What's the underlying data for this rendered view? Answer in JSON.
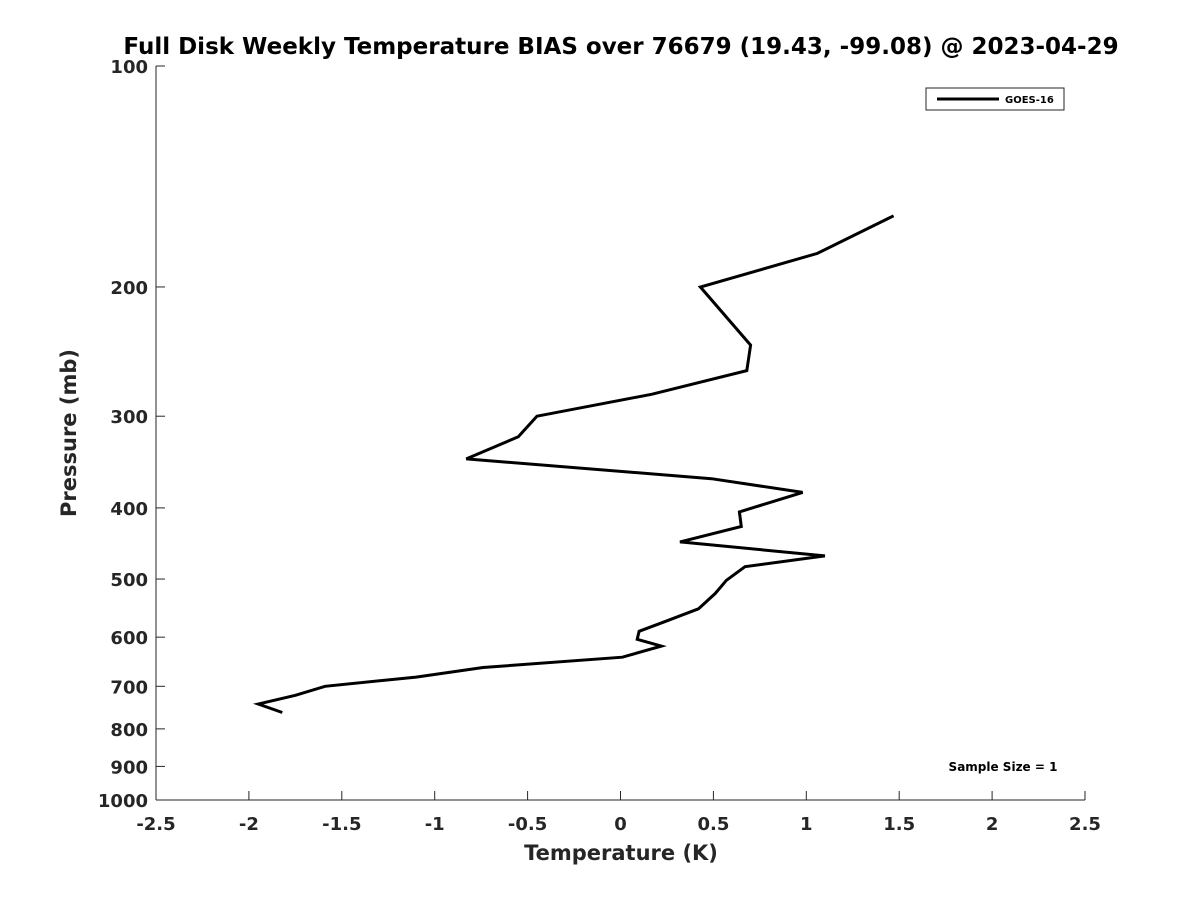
{
  "chart_data": {
    "type": "line",
    "title": "Full Disk Weekly Temperature BIAS over 76679 (19.43, -99.08) @ 2023-04-29",
    "xlabel": "Temperature (K)",
    "ylabel": "Pressure (mb)",
    "xlim": [
      -2.5,
      2.5
    ],
    "ylim": [
      100,
      1000
    ],
    "yscale": "log",
    "y_reversed": true,
    "grid": false,
    "x_ticks": [
      -2.5,
      -2,
      -1.5,
      -1,
      -0.5,
      0,
      0.5,
      1,
      1.5,
      2,
      2.5
    ],
    "x_tick_labels": [
      "-2.5",
      "-2",
      "-1.5",
      "-1",
      "-0.5",
      "0",
      "0.5",
      "1",
      "1.5",
      "2",
      "2.5"
    ],
    "y_ticks": [
      100,
      200,
      300,
      400,
      500,
      600,
      700,
      800,
      900,
      1000
    ],
    "y_tick_labels": [
      "100",
      "200",
      "300",
      "400",
      "500",
      "600",
      "700",
      "800",
      "900",
      "1000"
    ],
    "legend_position": "top-right",
    "series": [
      {
        "name": "GOES-16",
        "color": "#000000",
        "points": [
          {
            "x": 1.47,
            "p": 160
          },
          {
            "x": 1.06,
            "p": 180
          },
          {
            "x": 0.43,
            "p": 200
          },
          {
            "x": 0.7,
            "p": 240
          },
          {
            "x": 0.68,
            "p": 260
          },
          {
            "x": 0.17,
            "p": 280
          },
          {
            "x": -0.45,
            "p": 300
          },
          {
            "x": -0.55,
            "p": 320
          },
          {
            "x": -0.83,
            "p": 343
          },
          {
            "x": 0.49,
            "p": 365
          },
          {
            "x": 0.98,
            "p": 381
          },
          {
            "x": 0.64,
            "p": 405
          },
          {
            "x": 0.65,
            "p": 424
          },
          {
            "x": 0.32,
            "p": 445
          },
          {
            "x": 1.1,
            "p": 465
          },
          {
            "x": 0.67,
            "p": 481
          },
          {
            "x": 0.57,
            "p": 502
          },
          {
            "x": 0.51,
            "p": 523
          },
          {
            "x": 0.42,
            "p": 549
          },
          {
            "x": 0.25,
            "p": 570
          },
          {
            "x": 0.1,
            "p": 589
          },
          {
            "x": 0.09,
            "p": 604
          },
          {
            "x": 0.22,
            "p": 617
          },
          {
            "x": 0.01,
            "p": 639
          },
          {
            "x": -0.74,
            "p": 660
          },
          {
            "x": -1.1,
            "p": 680
          },
          {
            "x": -1.59,
            "p": 700
          },
          {
            "x": -1.75,
            "p": 720
          },
          {
            "x": -1.95,
            "p": 740
          },
          {
            "x": -1.82,
            "p": 760
          }
        ]
      }
    ],
    "annotation": "Sample Size = 1"
  }
}
